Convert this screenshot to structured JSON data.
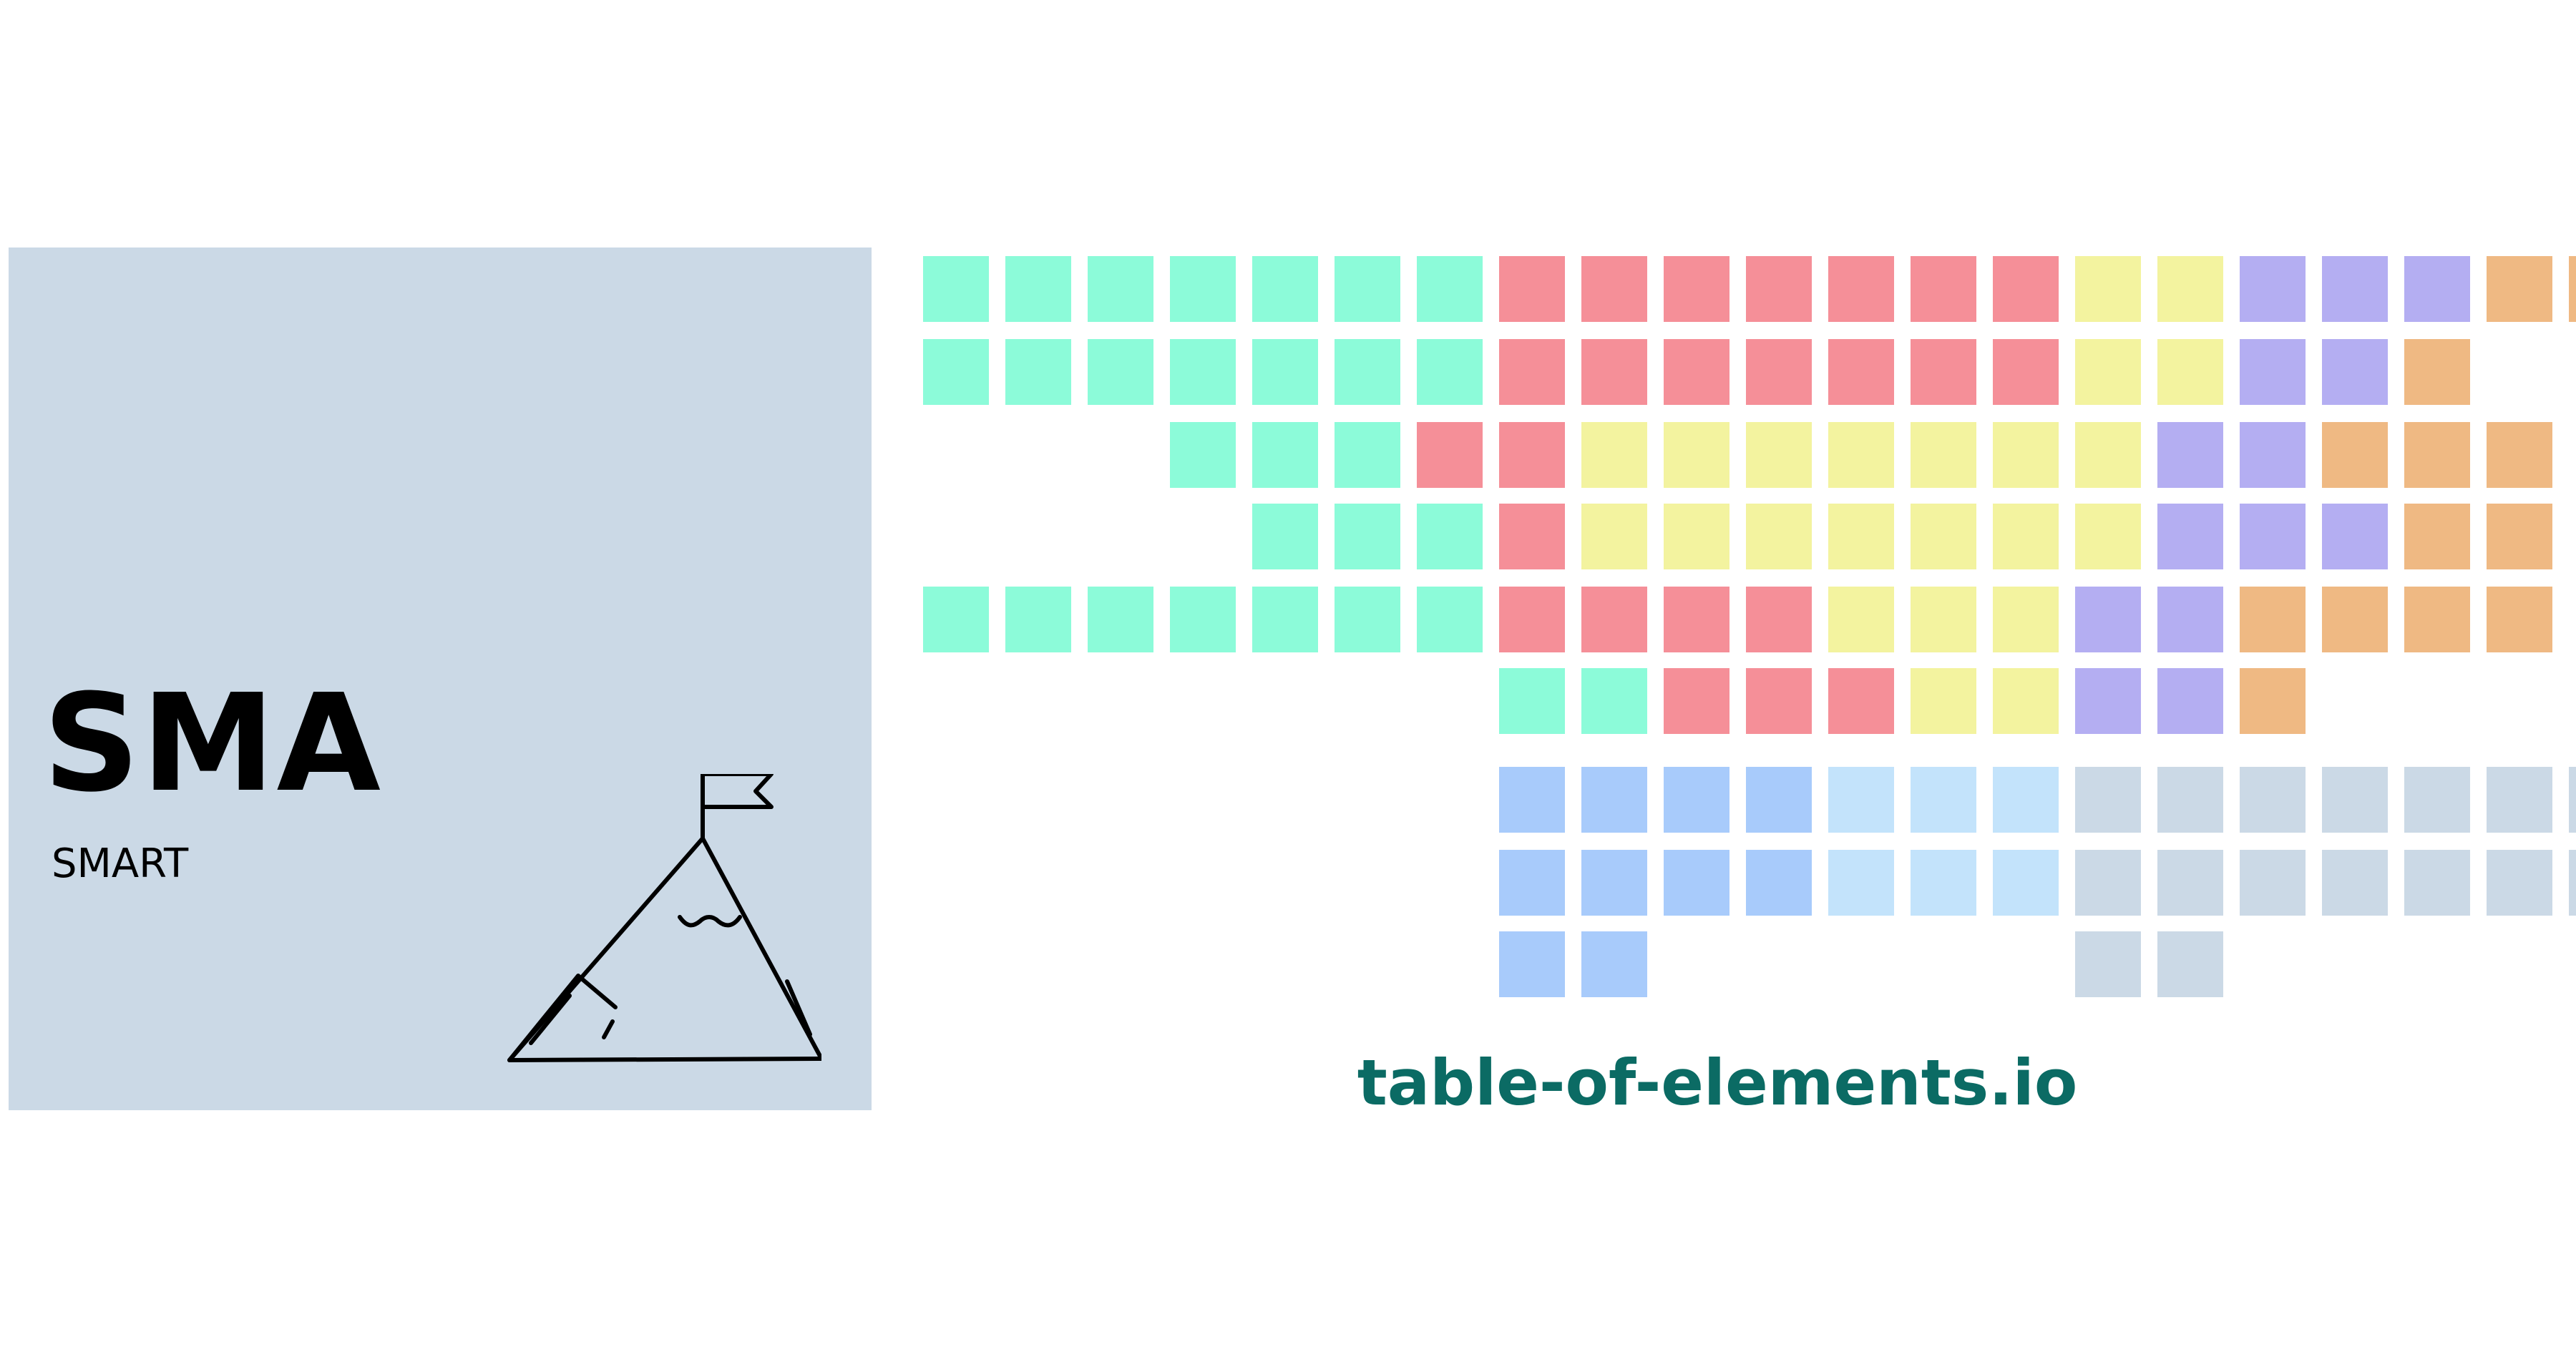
{
  "card": {
    "symbol": "SMA",
    "name": "SMART",
    "icon": "mountain-flag-icon",
    "background_color": "#cbd9e6"
  },
  "footer": {
    "url": "table-of-elements.io",
    "color": "#0b6b64"
  },
  "palette": {
    "t": "#8cfbd9",
    "r": "#f58f98",
    "y": "#f3f39f",
    "p": "#b4aef2",
    "o": "#efb983",
    "b": "#a8cbfb",
    "l": "#c3e3fb",
    "g": "#cbd9e6"
  },
  "grid_rows": [
    "tttttttrrrrrrryypppoo",
    "tttttttrrrrrrryyppo",
    "tttrryyyyyyyppooo",
    "tttryyyyyyypppoo",
    "tttttttrrrryyyppoooo",
    "ttrrryyppo",
    "bbbblllggggggg",
    "bbbblllggggggg",
    "bbgg"
  ]
}
